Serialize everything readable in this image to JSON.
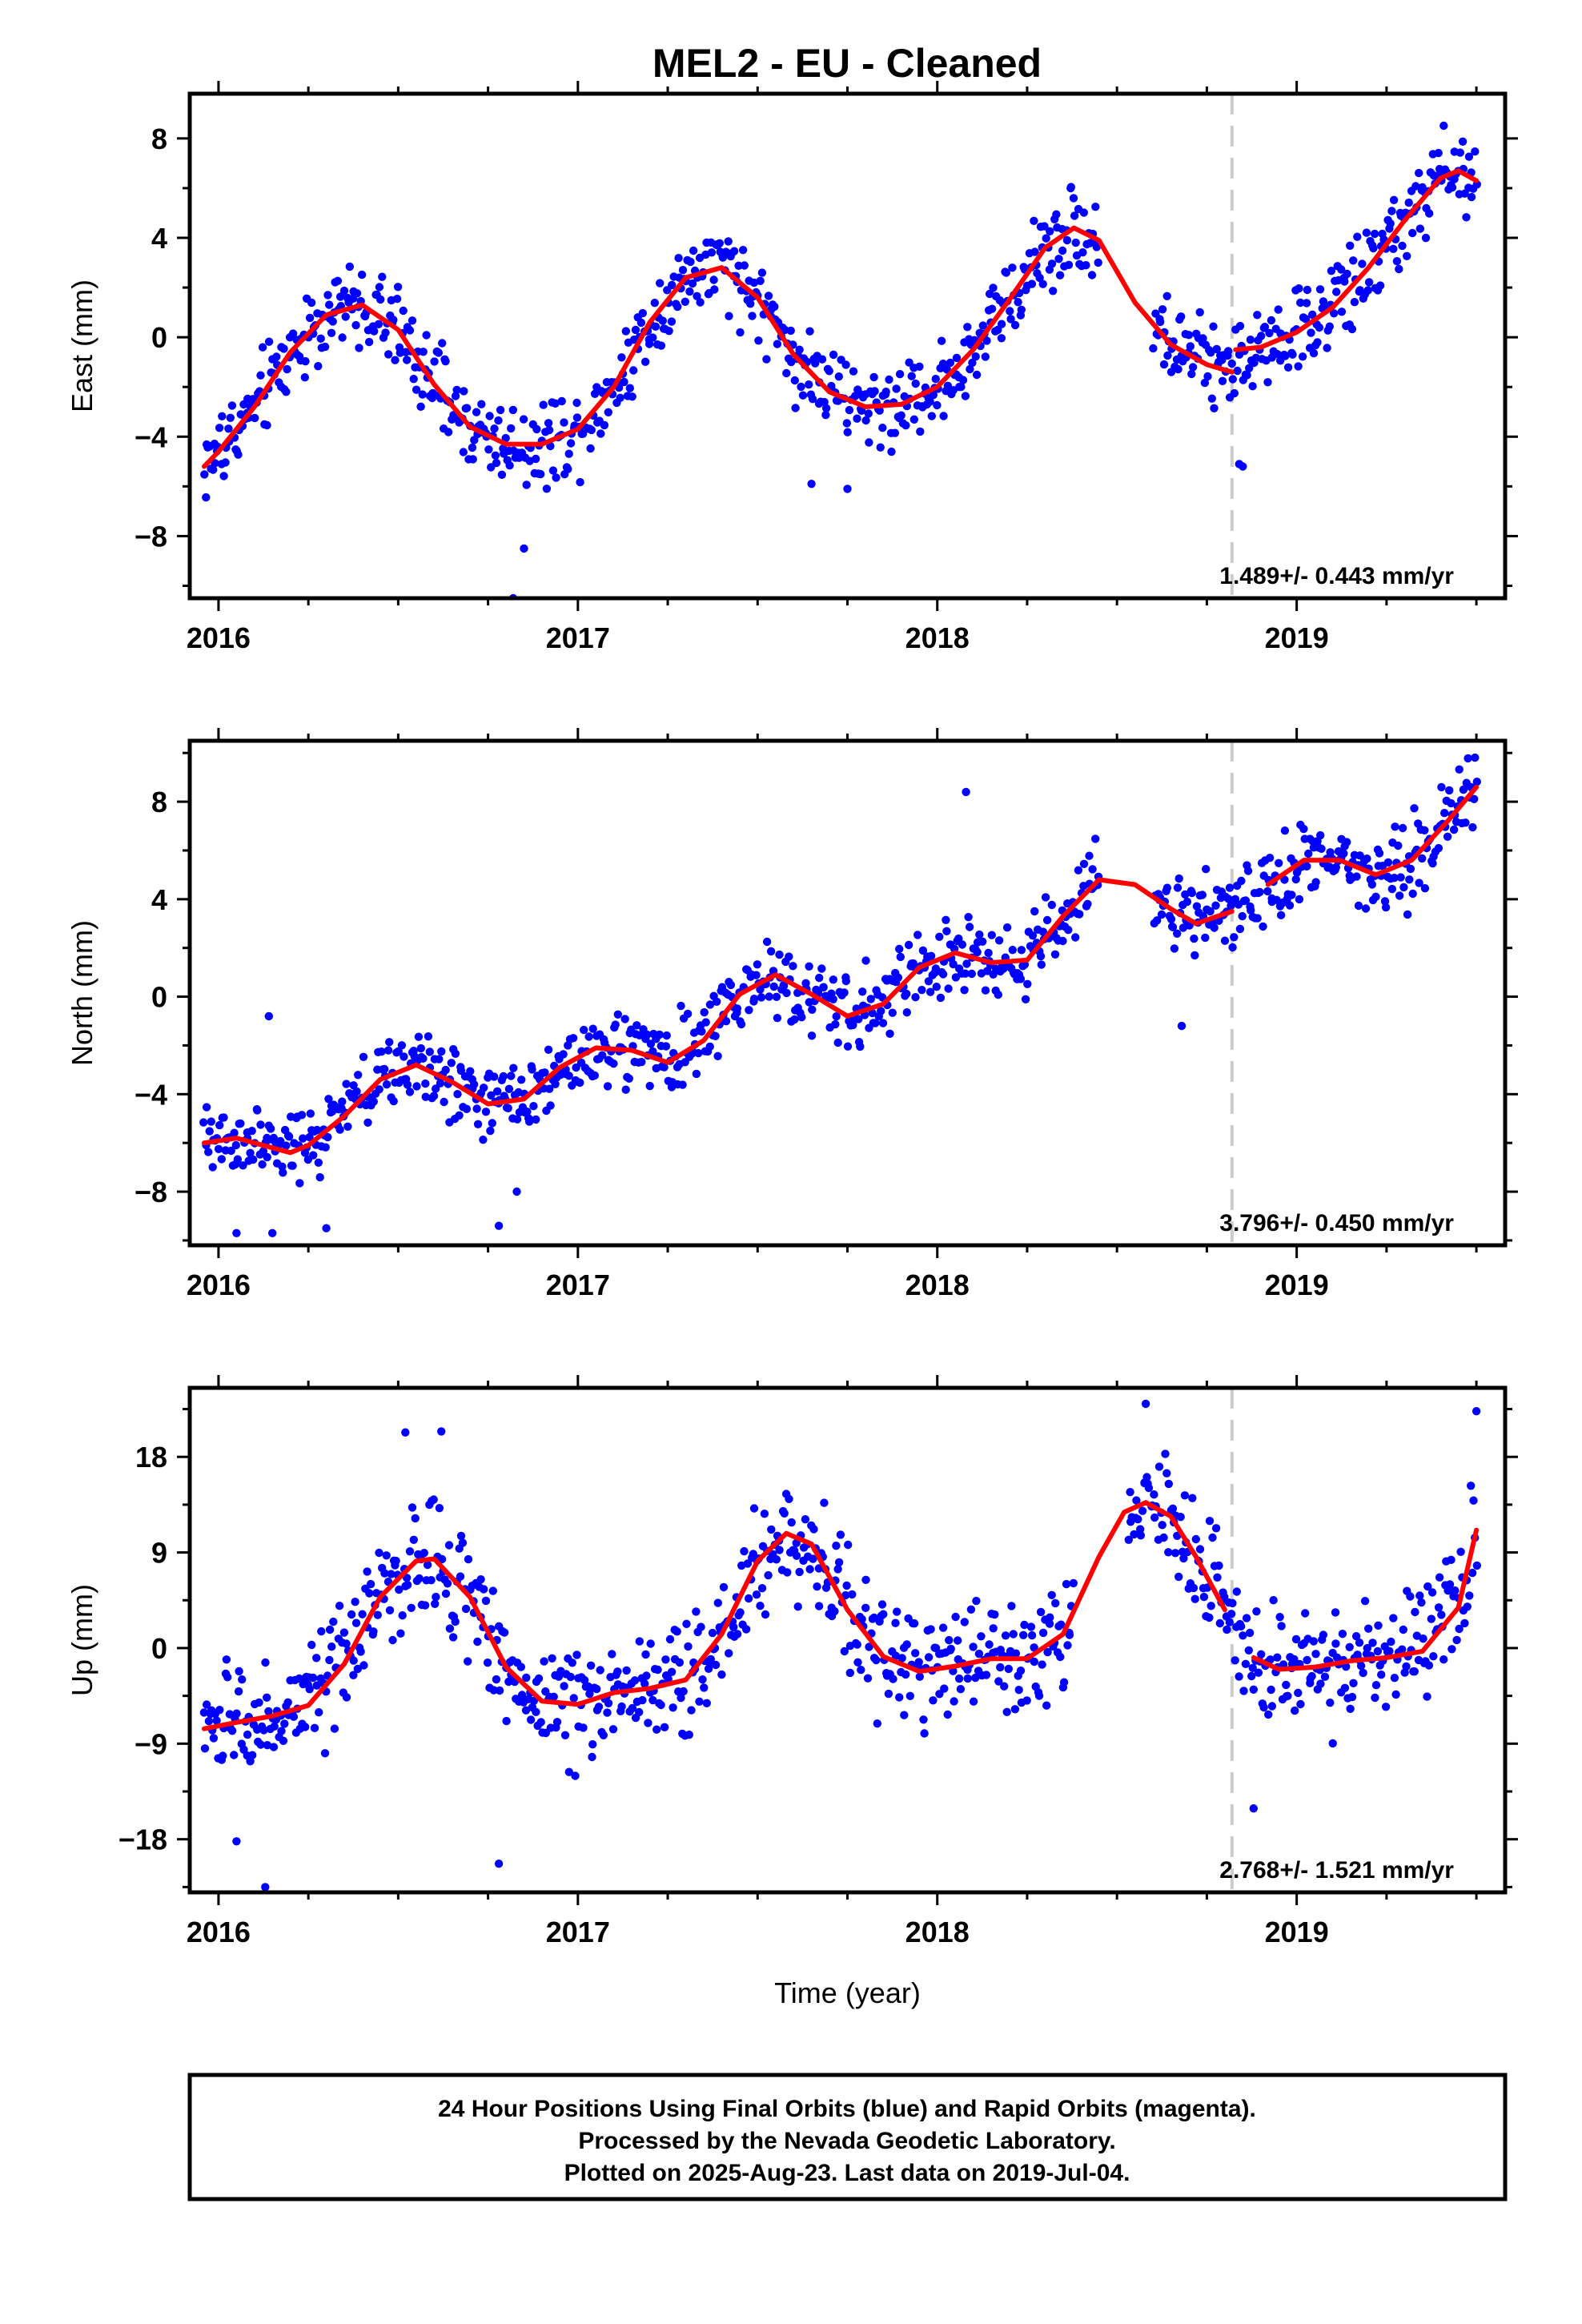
{
  "title": "MEL2  - EU - Cleaned",
  "colors": {
    "final_orbits": "#0000ff",
    "fit": "#ff0000",
    "rapid_orbits": "#ff00ff",
    "marker_line": "#cccccc"
  },
  "footer": {
    "line1": "24 Hour Positions Using Final Orbits (blue) and Rapid Orbits (magenta).",
    "line2": "Processed by the Nevada Geodetic Laboratory.",
    "line3": "Plotted on 2025-Aug-23. Last data on 2019-Jul-04."
  },
  "chart_data": [
    {
      "type": "scatter",
      "name": "east",
      "ylabel": "East (mm)",
      "xlabel": "",
      "xlim": [
        2015.92,
        2019.58
      ],
      "ylim": [
        -10.5,
        9.8
      ],
      "xticks": [
        2016,
        2017,
        2018,
        2019
      ],
      "yticks": [
        -8,
        -4,
        0,
        4,
        8
      ],
      "rate_label": "1.489+/- 0.443 mm/yr",
      "break_epoch": 2018.82,
      "fit": {
        "x": [
          2015.96,
          2016.0,
          2016.1,
          2016.2,
          2016.3,
          2016.4,
          2016.5,
          2016.6,
          2016.7,
          2016.8,
          2016.9,
          2017.0,
          2017.1,
          2017.2,
          2017.3,
          2017.4,
          2017.5,
          2017.6,
          2017.7,
          2017.8,
          2017.9,
          2018.0,
          2018.1,
          2018.2,
          2018.3,
          2018.38,
          2018.45,
          2018.55,
          2018.65,
          2018.75,
          2018.82,
          2018.83,
          2018.9,
          2019.0,
          2019.1,
          2019.2,
          2019.3,
          2019.4,
          2019.45,
          2019.5
        ],
        "y": [
          -5.2,
          -4.6,
          -2.8,
          -0.6,
          0.9,
          1.3,
          0.3,
          -1.9,
          -3.6,
          -4.3,
          -4.3,
          -3.7,
          -2.0,
          0.6,
          2.4,
          2.8,
          1.6,
          -0.7,
          -2.2,
          -2.8,
          -2.7,
          -2.0,
          -0.5,
          1.5,
          3.6,
          4.4,
          3.9,
          1.4,
          -0.3,
          -1.1,
          -1.4,
          -0.5,
          -0.4,
          0.2,
          1.2,
          2.8,
          4.7,
          6.4,
          6.7,
          6.3
        ]
      },
      "scatter_spec": {
        "count": 900,
        "noise_sd": 1.2,
        "outliers": [
          [
            2016.82,
            -10.5
          ],
          [
            2016.85,
            -8.5
          ],
          [
            2017.75,
            -6.1
          ],
          [
            2017.65,
            -5.9
          ],
          [
            2018.85,
            -5.2
          ],
          [
            2018.84,
            -5.1
          ]
        ]
      }
    },
    {
      "type": "scatter",
      "name": "north",
      "ylabel": "North (mm)",
      "xlabel": "",
      "xlim": [
        2015.92,
        2019.58
      ],
      "ylim": [
        -10.2,
        10.5
      ],
      "xticks": [
        2016,
        2017,
        2018,
        2019
      ],
      "yticks": [
        -8,
        -4,
        0,
        4,
        8
      ],
      "rate_label": "3.796+/- 0.450 mm/yr",
      "break_epoch": 2018.82,
      "fit": {
        "x": [
          2015.96,
          2016.05,
          2016.15,
          2016.2,
          2016.25,
          2016.35,
          2016.45,
          2016.55,
          2016.65,
          2016.75,
          2016.85,
          2016.95,
          2017.05,
          2017.15,
          2017.25,
          2017.35,
          2017.45,
          2017.55,
          2017.65,
          2017.75,
          2017.85,
          2017.95,
          2018.05,
          2018.15,
          2018.25,
          2018.35,
          2018.45,
          2018.55,
          2018.65,
          2018.72,
          2018.82,
          2018.92,
          2019.02,
          2019.12,
          2019.22,
          2019.32,
          2019.42,
          2019.5
        ],
        "y": [
          -6.0,
          -5.8,
          -6.2,
          -6.4,
          -6.1,
          -4.9,
          -3.4,
          -2.8,
          -3.5,
          -4.4,
          -4.2,
          -2.9,
          -2.1,
          -2.2,
          -2.7,
          -1.8,
          0.1,
          0.9,
          0.1,
          -0.8,
          -0.3,
          1.2,
          1.8,
          1.4,
          1.5,
          3.3,
          4.8,
          4.6,
          3.6,
          3.0,
          3.5,
          4.6,
          5.6,
          5.6,
          5.0,
          5.6,
          7.2,
          8.6
        ]
      },
      "scatter_spec": {
        "count": 900,
        "noise_sd": 1.1,
        "outliers": [
          [
            2016.05,
            -9.7
          ],
          [
            2016.15,
            -9.7
          ],
          [
            2016.3,
            -9.5
          ],
          [
            2016.78,
            -9.4
          ],
          [
            2016.83,
            -8.0
          ],
          [
            2018.08,
            8.4
          ],
          [
            2018.68,
            -1.2
          ],
          [
            2016.14,
            -0.8
          ]
        ]
      }
    },
    {
      "type": "scatter",
      "name": "up",
      "ylabel": "Up (mm)",
      "xlabel": "Time (year)",
      "xlim": [
        2015.92,
        2019.58
      ],
      "ylim": [
        -23.0,
        24.5
      ],
      "xticks": [
        2016,
        2017,
        2018,
        2019
      ],
      "yticks": [
        -18,
        -9,
        0,
        9,
        18
      ],
      "rate_label": "2.768+/- 1.521 mm/yr",
      "break_epoch": 2018.82,
      "fit": {
        "x": [
          2015.96,
          2016.05,
          2016.15,
          2016.25,
          2016.35,
          2016.45,
          2016.55,
          2016.6,
          2016.7,
          2016.8,
          2016.9,
          2017.0,
          2017.1,
          2017.2,
          2017.3,
          2017.4,
          2017.5,
          2017.58,
          2017.65,
          2017.75,
          2017.85,
          2017.95,
          2018.05,
          2018.15,
          2018.25,
          2018.35,
          2018.45,
          2018.52,
          2018.58,
          2018.65,
          2018.72,
          2018.8,
          2018.88,
          2018.95,
          2019.05,
          2019.15,
          2019.25,
          2019.35,
          2019.45,
          2019.5
        ],
        "y": [
          -7.6,
          -7.0,
          -6.4,
          -5.4,
          -1.5,
          4.8,
          8.2,
          8.4,
          4.8,
          -1.8,
          -5.0,
          -5.3,
          -4.2,
          -3.8,
          -3.0,
          1.3,
          8.2,
          10.8,
          9.8,
          3.6,
          -0.8,
          -2.2,
          -1.7,
          -1.0,
          -1.0,
          1.3,
          8.6,
          12.8,
          13.7,
          12.4,
          8.6,
          3.6,
          -0.9,
          -2.0,
          -1.8,
          -1.2,
          -0.9,
          -0.3,
          3.8,
          11.1
        ]
      },
      "scatter_spec": {
        "count": 900,
        "noise_sd": 3.8,
        "outliers": [
          [
            2016.05,
            -18.2
          ],
          [
            2016.13,
            -22.5
          ],
          [
            2016.78,
            -20.3
          ],
          [
            2018.58,
            23.0
          ],
          [
            2018.88,
            -15.1
          ],
          [
            2019.5,
            22.3
          ],
          [
            2016.52,
            20.3
          ],
          [
            2016.62,
            20.4
          ]
        ]
      }
    }
  ]
}
